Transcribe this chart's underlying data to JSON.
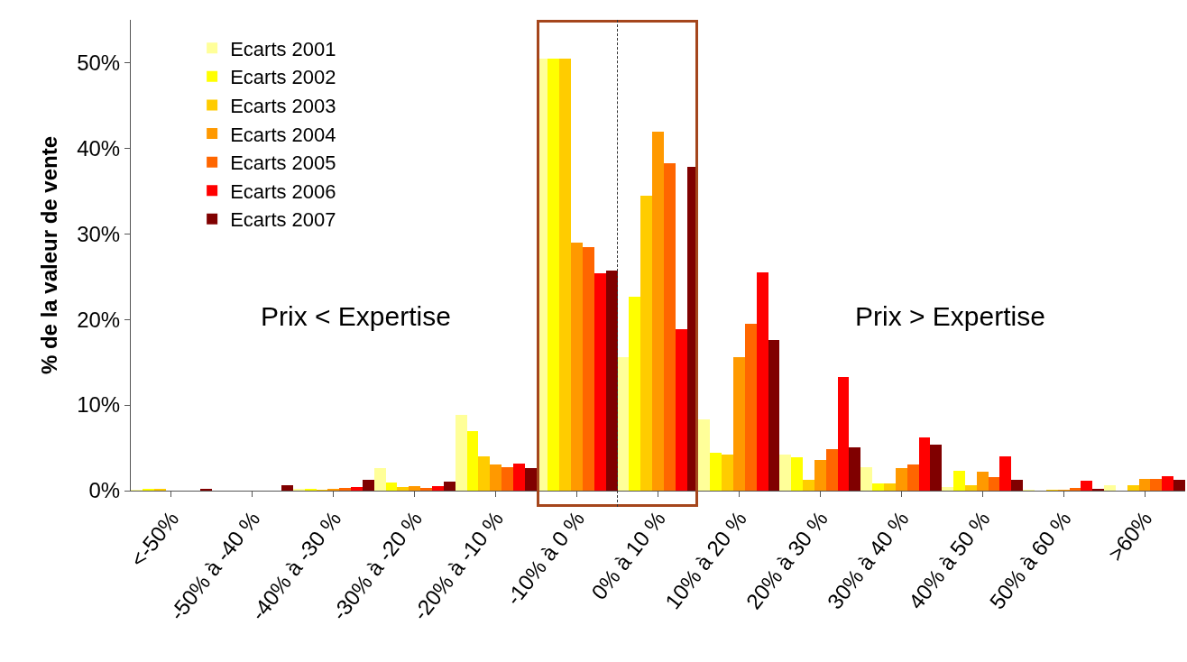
{
  "chart_data": {
    "type": "bar",
    "ylabel": "% de la valeur de vente",
    "categories": [
      "<-50%",
      "-50% à -40 %",
      "-40% à -30 %",
      "-30% à -20 %",
      "-20% à -10 %",
      "-10% à 0 %",
      "0% à 10 %",
      "10% à 20 %",
      "20% à 30 %",
      "30% à 40 %",
      "40% à 50 %",
      "50% à 60 %",
      ">60%"
    ],
    "series": [
      {
        "name": "Ecarts 2001",
        "color": "#ffff99",
        "values": [
          0.1,
          0,
          0.2,
          2.6,
          8.8,
          50.5,
          15.6,
          8.3,
          4.2,
          2.7,
          0.4,
          0.1,
          0.6
        ]
      },
      {
        "name": "Ecarts 2002",
        "color": "#ffff00",
        "values": [
          0.2,
          0,
          0.2,
          1.0,
          7.0,
          50.5,
          22.7,
          4.4,
          3.9,
          0.8,
          2.3,
          0,
          0
        ]
      },
      {
        "name": "Ecarts 2003",
        "color": "#ffcc00",
        "values": [
          0.2,
          0,
          0.1,
          0.4,
          4.0,
          50.5,
          34.5,
          4.2,
          1.3,
          0.8,
          0.6,
          0.1,
          0.6
        ]
      },
      {
        "name": "Ecarts 2004",
        "color": "#ff9900",
        "values": [
          0,
          0,
          0.2,
          0.5,
          3.1,
          29.0,
          41.9,
          15.6,
          3.6,
          2.6,
          2.2,
          0.1,
          1.4
        ]
      },
      {
        "name": "Ecarts 2005",
        "color": "#ff6600",
        "values": [
          0,
          0,
          0.3,
          0.3,
          2.7,
          28.4,
          38.3,
          19.5,
          4.8,
          3.1,
          1.6,
          0.3,
          1.4
        ]
      },
      {
        "name": "Ecarts 2006",
        "color": "#ff0000",
        "values": [
          0,
          0,
          0.4,
          0.5,
          3.2,
          25.4,
          18.9,
          25.5,
          13.3,
          6.2,
          4.0,
          1.2,
          1.7
        ]
      },
      {
        "name": "Ecarts 2007",
        "color": "#800000",
        "values": [
          0.2,
          0.6,
          1.3,
          1.1,
          2.6,
          25.7,
          37.8,
          17.6,
          5.1,
          5.4,
          1.3,
          0.2,
          1.3
        ]
      }
    ],
    "ylim": [
      0,
      55
    ],
    "yticks": [
      {
        "value": 0,
        "label": "0%"
      },
      {
        "value": 10,
        "label": "10%"
      },
      {
        "value": 20,
        "label": "20%"
      },
      {
        "value": 30,
        "label": "30%"
      },
      {
        "value": 40,
        "label": "40%"
      },
      {
        "value": 50,
        "label": "50%"
      }
    ],
    "annotations": [
      "Prix < Expertise",
      "Prix > Expertise"
    ],
    "grid": false,
    "legend": "top left"
  }
}
